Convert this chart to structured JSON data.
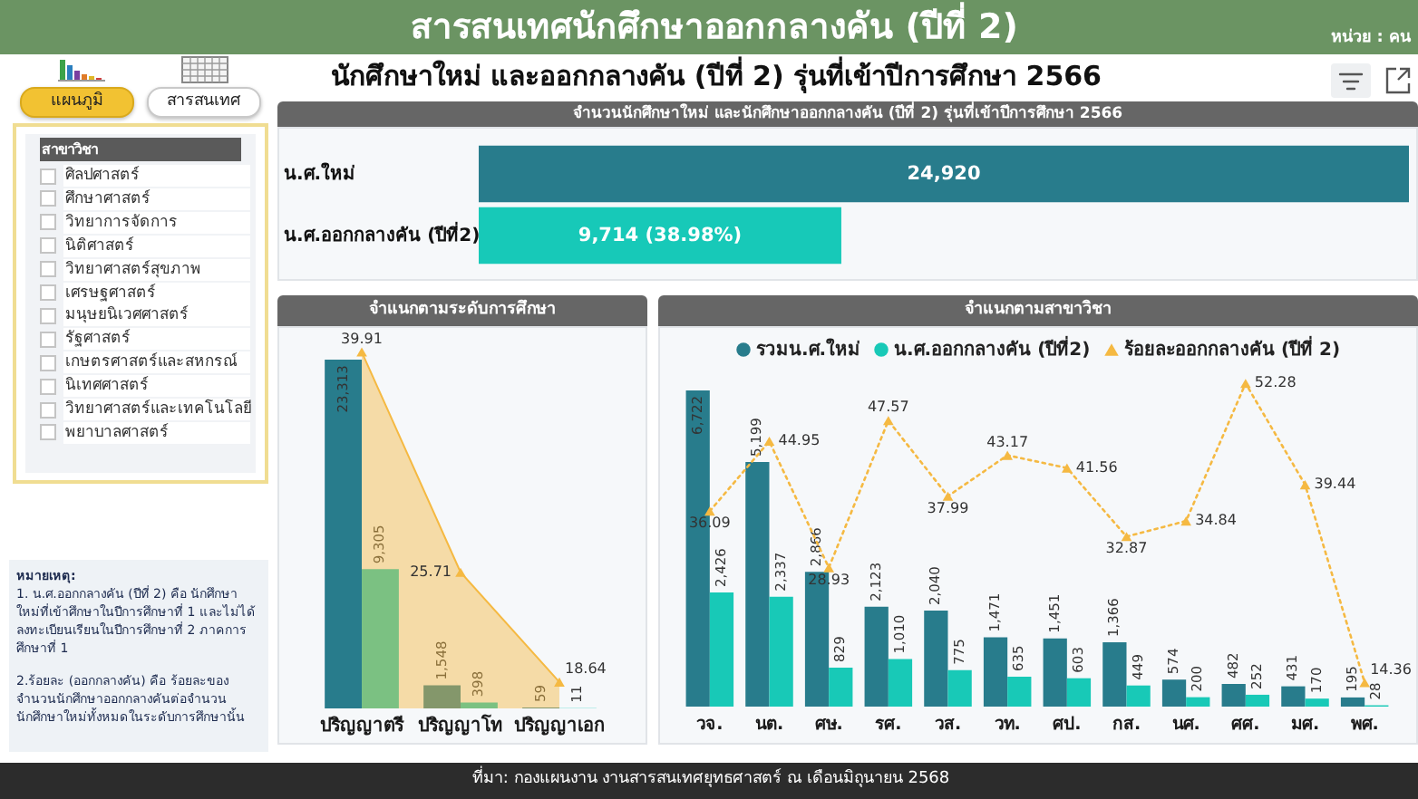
{
  "chart_data": [
    {
      "type": "other",
      "title": "สารสนเทศนักศึกษาออกกลางคัน (ปีที่ 2)",
      "subtitle": "นักศึกษาใหม่ และออกกลางคัน (ปีที่ 2) รุ่นที่เข้าปีการศึกษา 2566",
      "annotations": [
        "หน่วย : คน",
        "ที่มา: กองแผนงาน งานสารสนเทศยุทธศาสตร์ ณ เดือนมิถุนายน 2568"
      ]
    },
    {
      "type": "other",
      "title": "สาขาวิชา",
      "categories": [
        "ศิลปศาสตร์",
        "ศึกษาศาสตร์",
        "วิทยาการจัดการ",
        "นิติศาสตร์",
        "วิทยาศาสตร์สุขภาพ",
        "เศรษฐศาสตร์",
        "มนุษยนิเวศศาสตร์",
        "รัฐศาสตร์",
        "เกษตรศาสตร์และสหกรณ์",
        "นิเทศศาสตร์",
        "วิทยาศาสตร์และเทคโนโลยี",
        "พยาบาลศาสตร์"
      ],
      "annotations": [
        "แผนภูมิ",
        "สารสนเทศ"
      ]
    },
    {
      "type": "bar",
      "orientation": "horizontal",
      "title": "จำนวนนักศึกษาใหม่ และนักศึกษาออกกลางคัน (ปีที่ 2) รุ่นที่เข้าปีการศึกษา 2566",
      "categories": [
        "น.ศ.ใหม่",
        "น.ศ.ออกกลางคัน (ปีที่2)"
      ],
      "values": [
        24920,
        9714
      ],
      "colors": [
        "#287c8c",
        "#17c9b8"
      ],
      "value_labels": [
        "24,920",
        "9,714 (38.98%)"
      ]
    },
    {
      "type": "bar",
      "title": "จำแนกตามระดับการศึกษา",
      "categories": [
        "ปริญญาตรี",
        "ปริญญาโท",
        "ปริญญาเอก"
      ],
      "series": [
        {
          "color": "#287c8c",
          "values": [
            23313,
            1548,
            59
          ],
          "value_labels": [
            "23,313",
            "1,548",
            "59"
          ]
        },
        {
          "color": "#18c9b7",
          "values": [
            9305,
            398,
            11
          ],
          "value_labels": [
            "9,305",
            "398",
            "11"
          ]
        },
        {
          "type": "area",
          "axis": "y2",
          "color": "#f5b942",
          "marker": "triangle",
          "values": [
            39.91,
            25.71,
            18.64
          ],
          "value_labels": [
            "39.91",
            "25.71",
            "18.64"
          ]
        }
      ],
      "tick_labels": "x"
    },
    {
      "type": "bar",
      "title": "จำแนกตามสาขาวิชา",
      "categories": [
        "วจ.",
        "นต.",
        "ศษ.",
        "รศ.",
        "วส.",
        "วท.",
        "ศป.",
        "กส.",
        "นศ.",
        "ศศ.",
        "มศ.",
        "พศ."
      ],
      "series": [
        {
          "name": "รวมน.ศ.ใหม่",
          "color": "#287c8c",
          "values": [
            6722,
            5199,
            2866,
            2123,
            2040,
            1471,
            1451,
            1366,
            574,
            482,
            431,
            195
          ],
          "value_labels": [
            "6,722",
            "5,199",
            "2,866",
            "2,123",
            "2,040",
            "1,471",
            "1,451",
            "1,366",
            "574",
            "482",
            "431",
            "195"
          ]
        },
        {
          "name": "น.ศ.ออกกลางคัน (ปีที่2)",
          "color": "#18c9b7",
          "values": [
            2426,
            2337,
            829,
            1010,
            775,
            635,
            603,
            449,
            200,
            252,
            170,
            28
          ],
          "value_labels": [
            "2,426",
            "2,337",
            "829",
            "1,010",
            "775",
            "635",
            "603",
            "449",
            "200",
            "252",
            "170",
            "28"
          ]
        },
        {
          "name": "ร้อยละออกกลางคัน (ปีที่ 2)",
          "type": "line",
          "axis": "y2",
          "color": "#f5b942",
          "marker": "triangle",
          "line_style": "dotted",
          "values": [
            36.09,
            44.95,
            28.93,
            47.57,
            37.99,
            43.17,
            41.56,
            32.87,
            34.84,
            52.28,
            39.44,
            14.36
          ],
          "value_labels": [
            "36.09",
            "44.95",
            "28.93",
            "47.57",
            "37.99",
            "43.17",
            "41.56",
            "32.87",
            "34.84",
            "52.28",
            "39.44",
            "14.36"
          ]
        }
      ],
      "tick_labels": "x",
      "legend": "top"
    },
    {
      "type": "other",
      "title": "หมายเหตุ:",
      "annotations": [
        "1. น.ศ.ออกกลางคัน (ปีที่ 2) คือ นักศึกษาใหม่ที่เข้าศึกษาในปีการศึกษาที่ 1 และไม่ได้ลงทะเบียนเรียนในปีการศึกษาที่ 2 ภาคการศึกษาที่ 1",
        "2.ร้อยละ (ออกกลางคัน) คือ ร้อยละของจำนวนนักศึกษาออกกลางคันต่อจำนวนนักศึกษาใหม่ทั้งหมดในระดับการศึกษานั้น"
      ]
    }
  ]
}
